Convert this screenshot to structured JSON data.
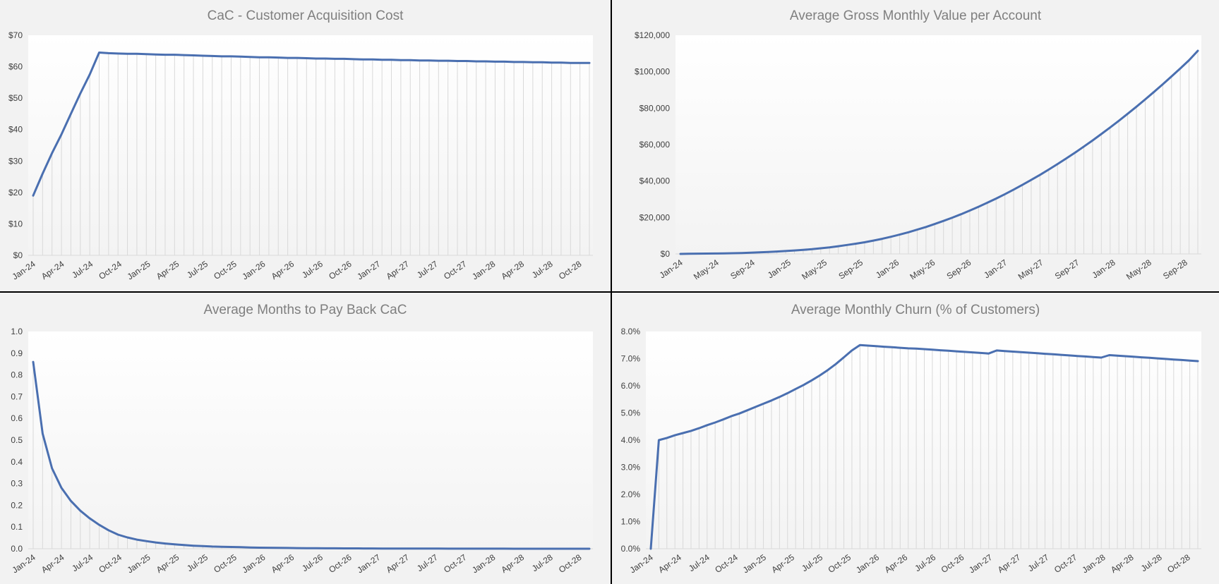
{
  "chart_data": [
    {
      "type": "line",
      "title": "CaC - Customer Acquisition Cost",
      "xlabel": "",
      "ylabel": "",
      "x_tick_labels": [
        "Jan-24",
        "Apr-24",
        "Jul-24",
        "Oct-24",
        "Jan-25",
        "Apr-25",
        "Jul-25",
        "Oct-25",
        "Jan-26",
        "Apr-26",
        "Jul-26",
        "Oct-26",
        "Jan-27",
        "Apr-27",
        "Jul-27",
        "Oct-27",
        "Jan-28",
        "Apr-28",
        "Jul-28",
        "Oct-28"
      ],
      "y_tick_labels": [
        "$0",
        "$10",
        "$20",
        "$30",
        "$40",
        "$50",
        "$60",
        "$70"
      ],
      "ylim": [
        0,
        70
      ],
      "grid": "vertical drop lines",
      "line_color": "#4a6fb0",
      "values": [
        19,
        26,
        32.5,
        38.5,
        45,
        51.5,
        57.5,
        64.5,
        64.3,
        64.2,
        64.1,
        64.1,
        64.0,
        63.9,
        63.8,
        63.8,
        63.7,
        63.6,
        63.5,
        63.4,
        63.3,
        63.3,
        63.2,
        63.1,
        63.0,
        63.0,
        62.9,
        62.8,
        62.8,
        62.7,
        62.6,
        62.6,
        62.5,
        62.5,
        62.4,
        62.3,
        62.3,
        62.2,
        62.2,
        62.1,
        62.1,
        62.0,
        62.0,
        61.9,
        61.9,
        61.8,
        61.8,
        61.7,
        61.7,
        61.6,
        61.6,
        61.5,
        61.5,
        61.4,
        61.4,
        61.3,
        61.3,
        61.2,
        61.2,
        61.2
      ]
    },
    {
      "type": "line",
      "title": "Average Gross Monthly Value per Account",
      "xlabel": "",
      "ylabel": "",
      "x_tick_labels": [
        "Jan-24",
        "May-24",
        "Sep-24",
        "Jan-25",
        "May-25",
        "Sep-25",
        "Jan-26",
        "May-26",
        "Sep-26",
        "Jan-27",
        "May-27",
        "Sep-27",
        "Jan-28",
        "May-28",
        "Sep-28"
      ],
      "y_tick_labels": [
        "$0",
        "$20,000",
        "$40,000",
        "$60,000",
        "$80,000",
        "$100,000",
        "$120,000"
      ],
      "ylim": [
        0,
        120000
      ],
      "grid": "vertical drop lines",
      "line_color": "#4a6fb0",
      "values": [
        0,
        80,
        150,
        200,
        250,
        300,
        400,
        500,
        700,
        900,
        1100,
        1300,
        1600,
        1900,
        2200,
        2600,
        3100,
        3600,
        4200,
        4900,
        5600,
        6400,
        7300,
        8300,
        9400,
        10600,
        11900,
        13300,
        14800,
        16400,
        18100,
        19900,
        21800,
        23800,
        25900,
        28100,
        30400,
        32800,
        35300,
        37900,
        40600,
        43400,
        46300,
        49300,
        52400,
        55600,
        58900,
        62300,
        65800,
        69400,
        73100,
        76900,
        80800,
        84800,
        88900,
        93100,
        97400,
        101800,
        106300,
        111500
      ]
    },
    {
      "type": "line",
      "title": "Average Months to Pay Back CaC",
      "xlabel": "",
      "ylabel": "",
      "x_tick_labels": [
        "Jan-24",
        "Apr-24",
        "Jul-24",
        "Oct-24",
        "Jan-25",
        "Apr-25",
        "Jul-25",
        "Oct-25",
        "Jan-26",
        "Apr-26",
        "Jul-26",
        "Oct-26",
        "Jan-27",
        "Apr-27",
        "Jul-27",
        "Oct-27",
        "Jan-28",
        "Apr-28",
        "Jul-28",
        "Oct-28"
      ],
      "y_tick_labels": [
        "0.0",
        "0.1",
        "0.2",
        "0.3",
        "0.4",
        "0.5",
        "0.6",
        "0.7",
        "0.8",
        "0.9",
        "1.0"
      ],
      "ylim": [
        0,
        1.0
      ],
      "grid": "vertical drop lines",
      "line_color": "#4a6fb0",
      "values": [
        0.86,
        0.53,
        0.37,
        0.28,
        0.22,
        0.175,
        0.14,
        0.11,
        0.085,
        0.065,
        0.052,
        0.042,
        0.035,
        0.029,
        0.024,
        0.02,
        0.017,
        0.014,
        0.012,
        0.01,
        0.009,
        0.008,
        0.007,
        0.006,
        0.005,
        0.0045,
        0.004,
        0.0035,
        0.003,
        0.0027,
        0.0024,
        0.0021,
        0.0019,
        0.0017,
        0.0015,
        0.0013,
        0.0012,
        0.0011,
        0.001,
        0.0009,
        0.0008,
        0.0007,
        0.0006,
        0.0005,
        0.0004,
        0.0004,
        0.0003,
        0.0003,
        0.0002,
        0.0002,
        0.0002,
        0.0001,
        0.0001,
        0.0001,
        0.0001,
        0.0001,
        0.0001,
        0.0001,
        0.0001,
        0.0001
      ]
    },
    {
      "type": "line",
      "title": "Average Monthly Churn (% of Customers)",
      "xlabel": "",
      "ylabel": "",
      "x_tick_labels": [
        "Jan-24",
        "Apr-24",
        "Jul-24",
        "Oct-24",
        "Jan-25",
        "Apr-25",
        "Jul-25",
        "Oct-25",
        "Jan-26",
        "Apr-26",
        "Jul-26",
        "Oct-26",
        "Jan-27",
        "Apr-27",
        "Jul-27",
        "Oct-27",
        "Jan-28",
        "Apr-28",
        "Jul-28",
        "Oct-28"
      ],
      "y_tick_labels": [
        "0.0%",
        "1.0%",
        "2.0%",
        "3.0%",
        "4.0%",
        "5.0%",
        "6.0%",
        "7.0%",
        "8.0%"
      ],
      "ylim": [
        0,
        8.0
      ],
      "grid": "vertical drop lines",
      "line_color": "#4a6fb0",
      "values": [
        0,
        4.0,
        4.08,
        4.18,
        4.26,
        4.34,
        4.44,
        4.55,
        4.65,
        4.76,
        4.88,
        4.98,
        5.1,
        5.22,
        5.34,
        5.46,
        5.59,
        5.73,
        5.88,
        6.03,
        6.2,
        6.38,
        6.58,
        6.8,
        7.05,
        7.3,
        7.5,
        7.48,
        7.46,
        7.44,
        7.42,
        7.4,
        7.38,
        7.37,
        7.35,
        7.33,
        7.31,
        7.29,
        7.27,
        7.25,
        7.23,
        7.21,
        7.19,
        7.3,
        7.28,
        7.26,
        7.24,
        7.22,
        7.2,
        7.18,
        7.16,
        7.14,
        7.12,
        7.1,
        7.08,
        7.06,
        7.04,
        7.13,
        7.11,
        7.09,
        7.07,
        7.05,
        7.03,
        7.01,
        6.99,
        6.97,
        6.95,
        6.93,
        6.91
      ]
    }
  ]
}
